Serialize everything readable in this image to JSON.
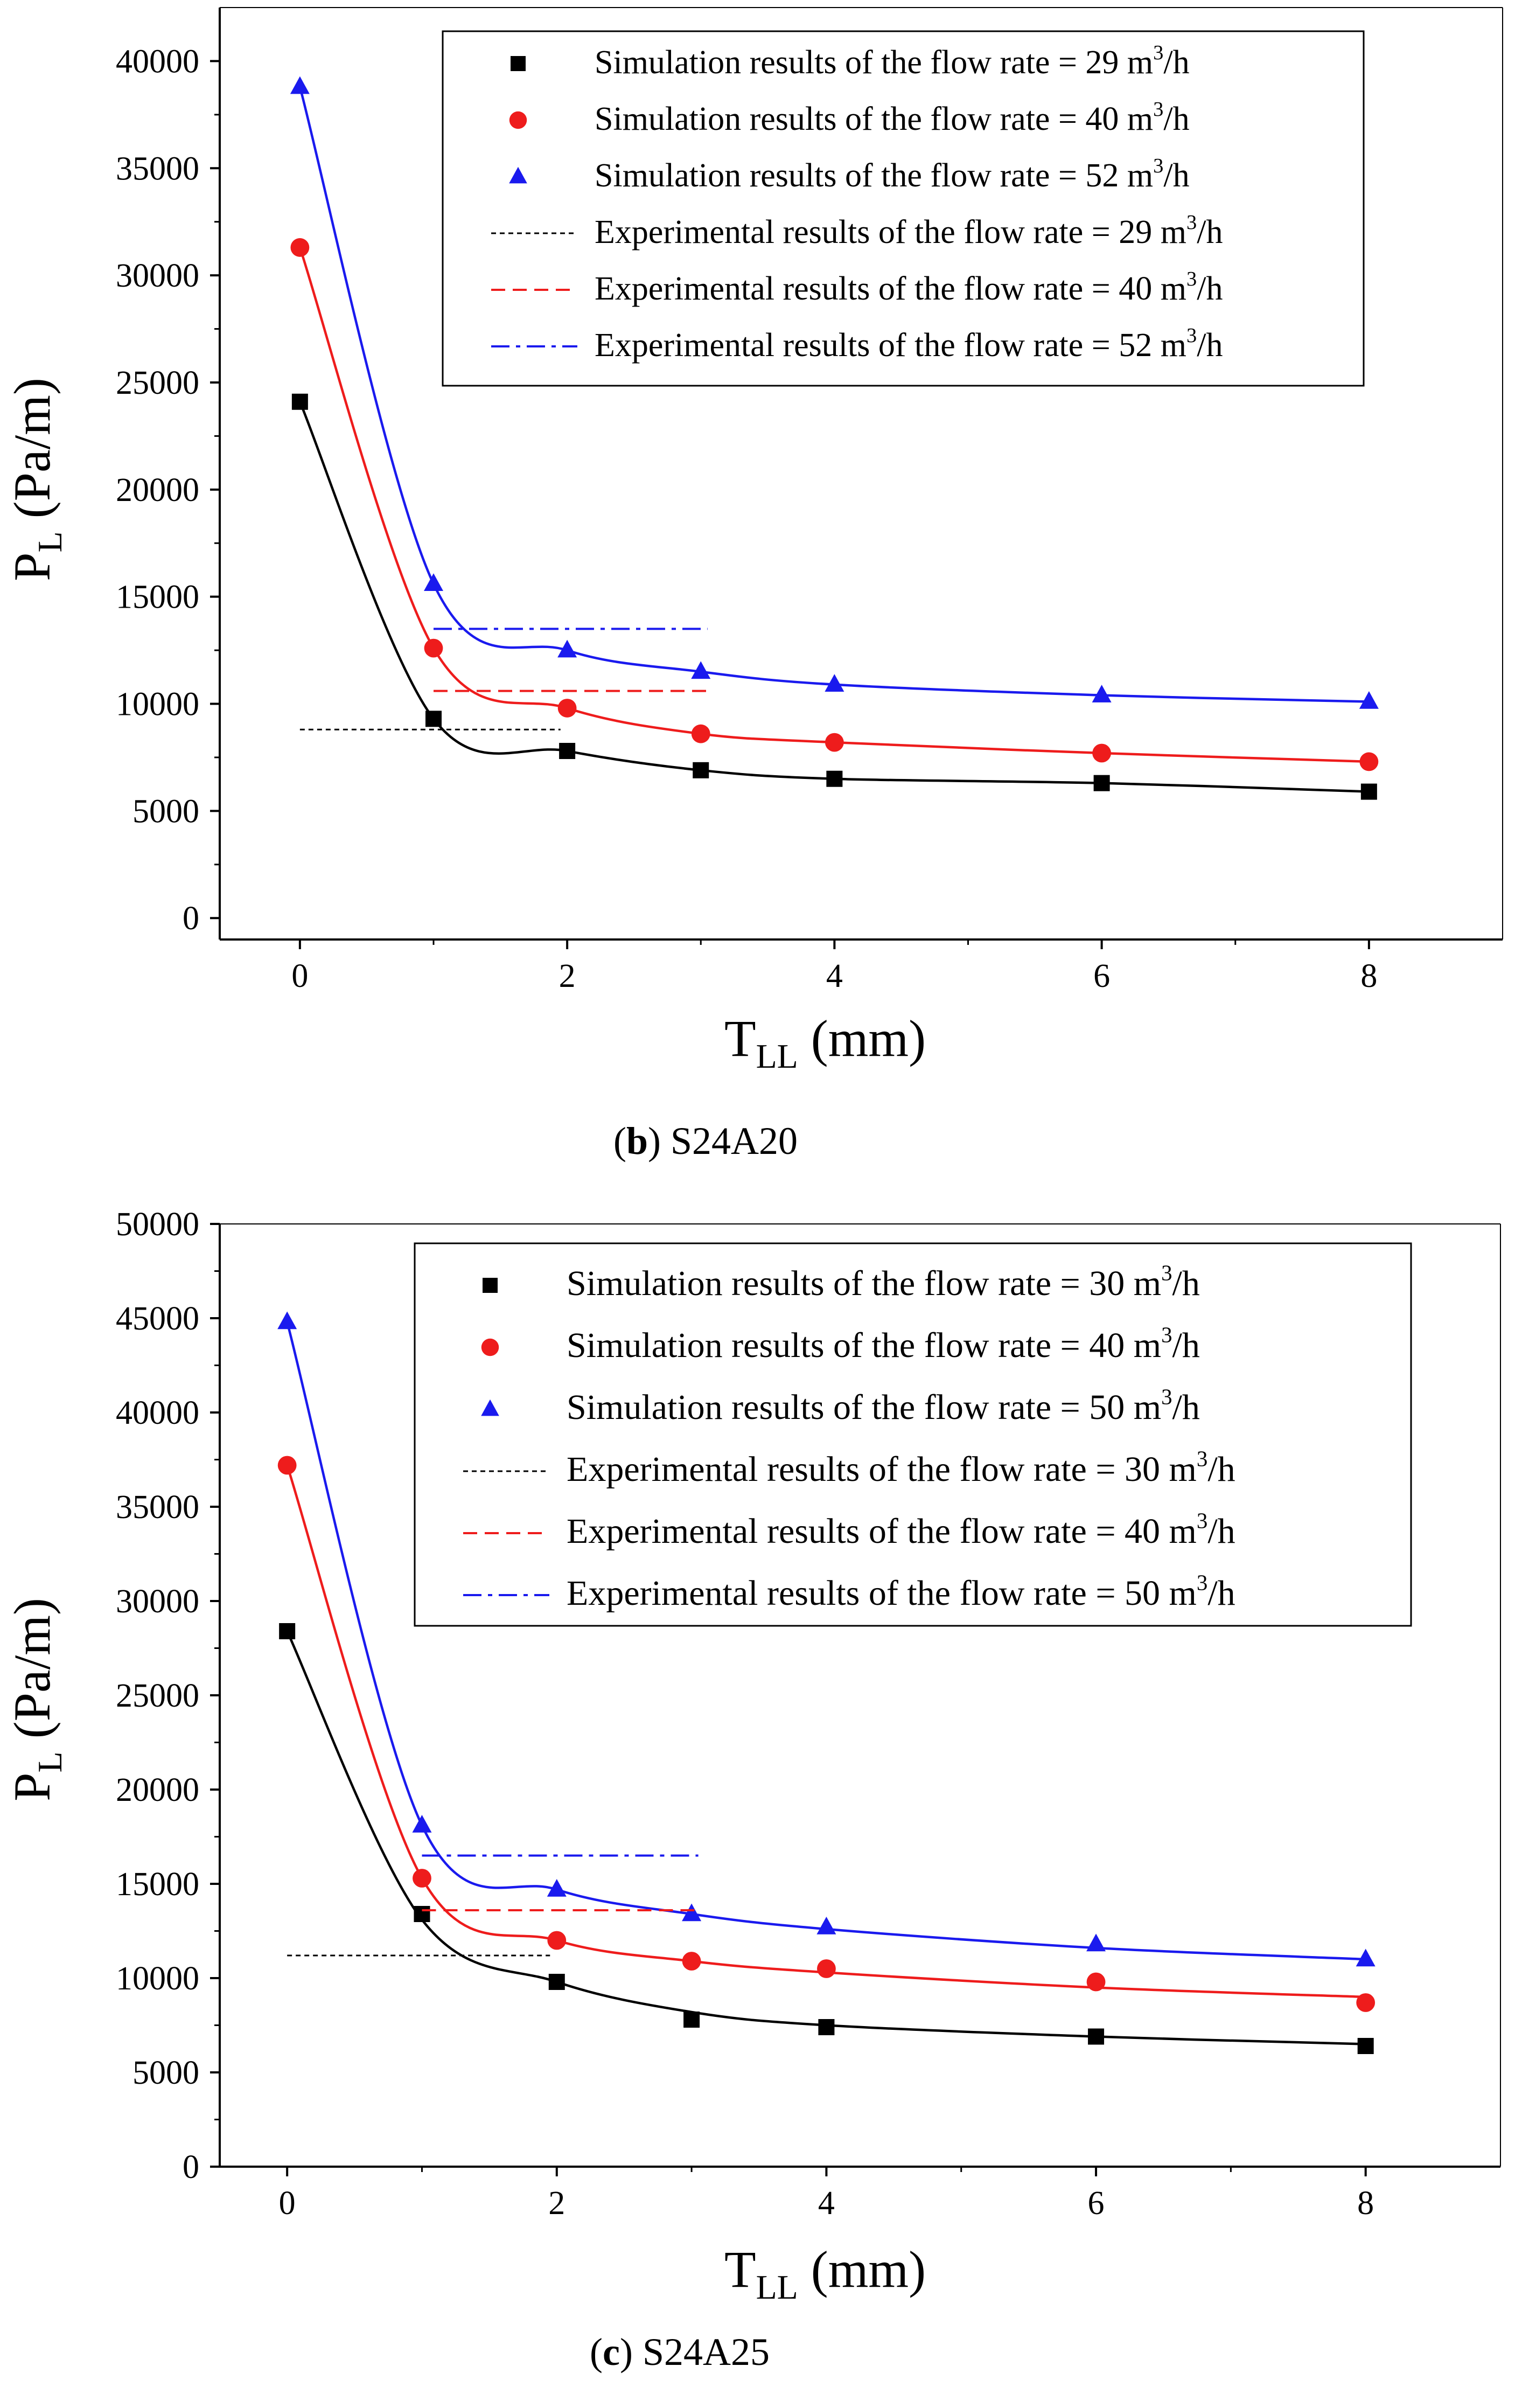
{
  "chart_data": [
    {
      "panel_id": "b",
      "caption": {
        "letter": "b",
        "text": "S24A20"
      },
      "type": "scatter",
      "xlabel": {
        "main": "T",
        "sub": "LL",
        "unit": "(mm)"
      },
      "ylabel": {
        "main": "P",
        "sub": "L",
        "unit": "(Pa/m)"
      },
      "xlim": [
        -0.6,
        9.0
      ],
      "ylim": [
        -1000,
        42500
      ],
      "xticks": [
        0,
        2,
        4,
        6,
        8
      ],
      "xticks_minor": [
        1,
        3,
        5,
        7
      ],
      "yticks": [
        0,
        5000,
        10000,
        15000,
        20000,
        25000,
        30000,
        35000,
        40000
      ],
      "yticks_minor": [
        2500,
        7500,
        12500,
        17500,
        22500,
        27500,
        32500,
        37500
      ],
      "grid": false,
      "legend_position": "top-right",
      "series": [
        {
          "kind": "sim",
          "marker": "square",
          "color": "#000000",
          "flow_rate": "29",
          "label": "Simulation results of the flow rate = 29 m",
          "label_tail": "/h",
          "x": [
            0,
            1,
            2,
            3,
            4,
            6,
            8
          ],
          "y": [
            24100,
            9300,
            7800,
            6900,
            6500,
            6300,
            5900
          ],
          "fit_y": [
            24100,
            9300,
            7800,
            6900,
            6500,
            6300,
            5900
          ]
        },
        {
          "kind": "sim",
          "marker": "circle",
          "color": "#ee1c1c",
          "flow_rate": "40",
          "label": "Simulation results of the flow rate = 40 m",
          "label_tail": "/h",
          "x": [
            0,
            1,
            2,
            3,
            4,
            6,
            8
          ],
          "y": [
            31300,
            12600,
            9800,
            8600,
            8200,
            7700,
            7300
          ],
          "fit_y": [
            31300,
            12600,
            9800,
            8600,
            8200,
            7700,
            7300
          ]
        },
        {
          "kind": "sim",
          "marker": "triangle",
          "color": "#1a1aee",
          "flow_rate": "52",
          "label": "Simulation results of the flow rate = 52 m",
          "label_tail": "/h",
          "x": [
            0,
            1,
            2,
            3,
            4,
            6,
            8
          ],
          "y": [
            38800,
            15600,
            12500,
            11500,
            10900,
            10400,
            10100
          ],
          "fit_y": [
            38800,
            15600,
            12500,
            11500,
            10900,
            10400,
            10100
          ]
        },
        {
          "kind": "exp",
          "dash": "dotted",
          "color": "#000000",
          "label": "Experimental results of the flow rate = 29 m",
          "label_tail": "/h",
          "x_range": [
            0,
            1.95
          ],
          "y": 8800
        },
        {
          "kind": "exp",
          "dash": "dashed",
          "color": "#ee1c1c",
          "label": "Experimental results of the flow rate = 40 m",
          "label_tail": "/h",
          "x_range": [
            1,
            3.05
          ],
          "y": 10600
        },
        {
          "kind": "exp",
          "dash": "dashdot",
          "color": "#1a1aee",
          "label": "Experimental results of the flow rate = 52 m",
          "label_tail": "/h",
          "x_range": [
            1,
            3.05
          ],
          "y": 13500
        }
      ]
    },
    {
      "panel_id": "c",
      "caption": {
        "letter": "c",
        "text": "S24A25"
      },
      "type": "scatter",
      "xlabel": {
        "main": "T",
        "sub": "LL",
        "unit": "(mm)"
      },
      "ylabel": {
        "main": "P",
        "sub": "L",
        "unit": "(Pa/m)"
      },
      "xlim": [
        -0.5,
        9.0
      ],
      "ylim": [
        0,
        50000
      ],
      "xticks": [
        0,
        2,
        4,
        6,
        8
      ],
      "xticks_minor": [
        1,
        3,
        5,
        7
      ],
      "yticks": [
        0,
        5000,
        10000,
        15000,
        20000,
        25000,
        30000,
        35000,
        40000,
        45000,
        50000
      ],
      "yticks_minor": [
        2500,
        7500,
        12500,
        17500,
        22500,
        27500,
        32500,
        37500,
        42500,
        47500
      ],
      "grid": false,
      "legend_position": "top-right",
      "series": [
        {
          "kind": "sim",
          "marker": "square",
          "color": "#000000",
          "flow_rate": "30",
          "label": "Simulation results of the flow rate = 30 m",
          "label_tail": "/h",
          "x": [
            0,
            1,
            2,
            3,
            4,
            6,
            8
          ],
          "y": [
            28400,
            13400,
            9800,
            7800,
            7400,
            6900,
            6400
          ],
          "fit_y": [
            28400,
            13100,
            9800,
            8200,
            7500,
            6900,
            6500
          ]
        },
        {
          "kind": "sim",
          "marker": "circle",
          "color": "#ee1c1c",
          "flow_rate": "40",
          "label": "Simulation results of the flow rate = 40 m",
          "label_tail": "/h",
          "x": [
            0,
            1,
            2,
            3,
            4,
            6,
            8
          ],
          "y": [
            37200,
            15300,
            12000,
            10900,
            10500,
            9800,
            8700
          ],
          "fit_y": [
            37200,
            15300,
            12000,
            10900,
            10300,
            9500,
            9000
          ]
        },
        {
          "kind": "sim",
          "marker": "triangle",
          "color": "#1a1aee",
          "flow_rate": "50",
          "label": "Simulation results of the flow rate = 50 m",
          "label_tail": "/h",
          "x": [
            0,
            1,
            2,
            3,
            4,
            6,
            8
          ],
          "y": [
            44800,
            18100,
            14700,
            13400,
            12700,
            11800,
            11000
          ],
          "fit_y": [
            44800,
            18100,
            14700,
            13400,
            12600,
            11600,
            11000
          ]
        },
        {
          "kind": "exp",
          "dash": "dotted",
          "color": "#000000",
          "label": "Experimental results of the flow rate = 30 m",
          "label_tail": "/h",
          "x_range": [
            0,
            1.95
          ],
          "y": 11200
        },
        {
          "kind": "exp",
          "dash": "dashed",
          "color": "#ee1c1c",
          "label": "Experimental results of the flow rate = 40 m",
          "label_tail": "/h",
          "x_range": [
            1,
            3.05
          ],
          "y": 13600
        },
        {
          "kind": "exp",
          "dash": "dashdot",
          "color": "#1a1aee",
          "label": "Experimental results of the flow rate = 50 m",
          "label_tail": "/h",
          "x_range": [
            1,
            3.05
          ],
          "y": 16500
        }
      ]
    }
  ],
  "superscript_3": "3"
}
